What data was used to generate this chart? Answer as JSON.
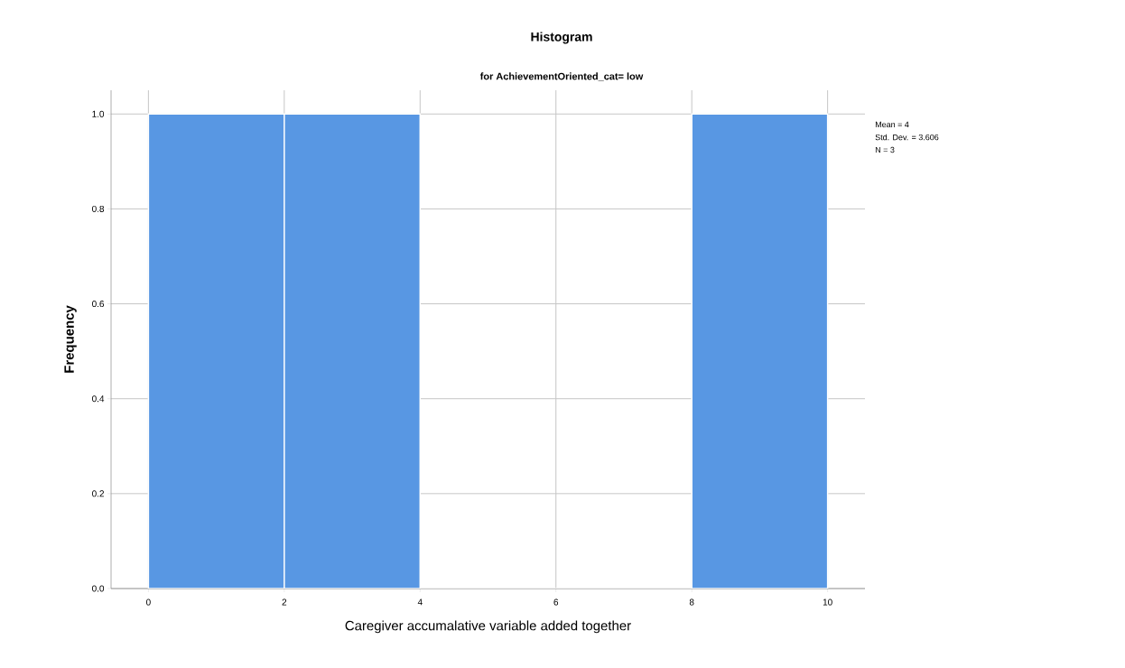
{
  "chart_data": {
    "type": "histogram",
    "title": "Histogram",
    "subtitle": "for AchievementOriented_cat= low",
    "xlabel": "Caregiver accumalative variable added together",
    "ylabel": "Frequency",
    "bins": [
      0,
      2,
      4,
      6,
      8,
      10
    ],
    "values": [
      1,
      1,
      0,
      0,
      1
    ],
    "color": "#5897e3",
    "xlim": [
      -0.55,
      10.55
    ],
    "ylim": [
      0,
      1.05
    ],
    "xticks": [
      0,
      2,
      4,
      6,
      8,
      10
    ],
    "yticks": [
      {
        "value": 0,
        "label": "0.0"
      },
      0.2,
      0.4,
      0.6,
      0.8,
      {
        "value": 1,
        "label": "1.0"
      }
    ],
    "grid": true,
    "annotations": [
      "Mean = 4",
      "Std. Dev. = 3.606",
      "N = 3"
    ]
  }
}
